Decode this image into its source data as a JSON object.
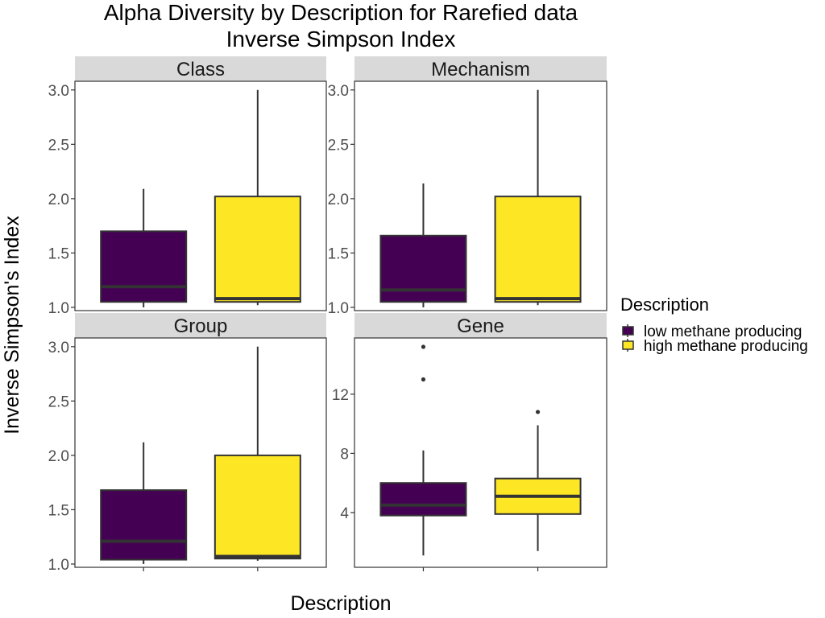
{
  "chart_data": {
    "type": "boxplot",
    "title_line1": "Alpha Diversity by Description for Rarefied data",
    "title_line2": "Inverse Simpson Index",
    "xlabel": "Description",
    "ylabel": "Inverse Simpson's Index",
    "legend": {
      "title": "Description",
      "placement": "right",
      "entries": [
        {
          "label": "low methane producing",
          "color": "#440154"
        },
        {
          "label": "high methane producing",
          "color": "#FDE725"
        }
      ]
    },
    "facets": [
      {
        "name": "Class",
        "ylim": [
          0.97,
          3.08
        ],
        "yticks": [
          1.0,
          1.5,
          2.0,
          2.5,
          3.0
        ],
        "tick_labels": [
          "1.0",
          "1.5",
          "2.0",
          "2.5",
          "3.0"
        ],
        "boxes": [
          {
            "group": "low methane producing",
            "min": 1.0,
            "q1": 1.05,
            "median": 1.19,
            "q3": 1.7,
            "max": 2.09,
            "outliers": []
          },
          {
            "group": "high methane producing",
            "min": 1.02,
            "q1": 1.05,
            "median": 1.08,
            "q3": 2.02,
            "max": 3.0,
            "outliers": []
          }
        ]
      },
      {
        "name": "Mechanism",
        "ylim": [
          0.97,
          3.08
        ],
        "yticks": [
          1.0,
          1.5,
          2.0,
          2.5,
          3.0
        ],
        "tick_labels": [
          "1.0",
          "1.5",
          "2.0",
          "2.5",
          "3.0"
        ],
        "boxes": [
          {
            "group": "low methane producing",
            "min": 1.0,
            "q1": 1.05,
            "median": 1.16,
            "q3": 1.66,
            "max": 2.14,
            "outliers": []
          },
          {
            "group": "high methane producing",
            "min": 1.02,
            "q1": 1.05,
            "median": 1.08,
            "q3": 2.02,
            "max": 3.0,
            "outliers": []
          }
        ]
      },
      {
        "name": "Group",
        "ylim": [
          0.97,
          3.08
        ],
        "yticks": [
          1.0,
          1.5,
          2.0,
          2.5,
          3.0
        ],
        "tick_labels": [
          "1.0",
          "1.5",
          "2.0",
          "2.5",
          "3.0"
        ],
        "boxes": [
          {
            "group": "low methane producing",
            "min": 1.0,
            "q1": 1.04,
            "median": 1.21,
            "q3": 1.68,
            "max": 2.12,
            "outliers": []
          },
          {
            "group": "high methane producing",
            "min": 1.03,
            "q1": 1.05,
            "median": 1.07,
            "q3": 2.0,
            "max": 3.0,
            "outliers": []
          }
        ]
      },
      {
        "name": "Gene",
        "ylim": [
          0.3,
          15.8
        ],
        "yticks": [
          4,
          8,
          12
        ],
        "tick_labels": [
          "4",
          "8",
          "12"
        ],
        "boxes": [
          {
            "group": "low methane producing",
            "min": 1.1,
            "q1": 3.8,
            "median": 4.5,
            "q3": 6.0,
            "max": 8.2,
            "outliers": [
              13.0,
              15.2
            ]
          },
          {
            "group": "high methane producing",
            "min": 1.4,
            "q1": 3.9,
            "median": 5.1,
            "q3": 6.3,
            "max": 9.9,
            "outliers": [
              10.8
            ]
          }
        ]
      }
    ]
  }
}
